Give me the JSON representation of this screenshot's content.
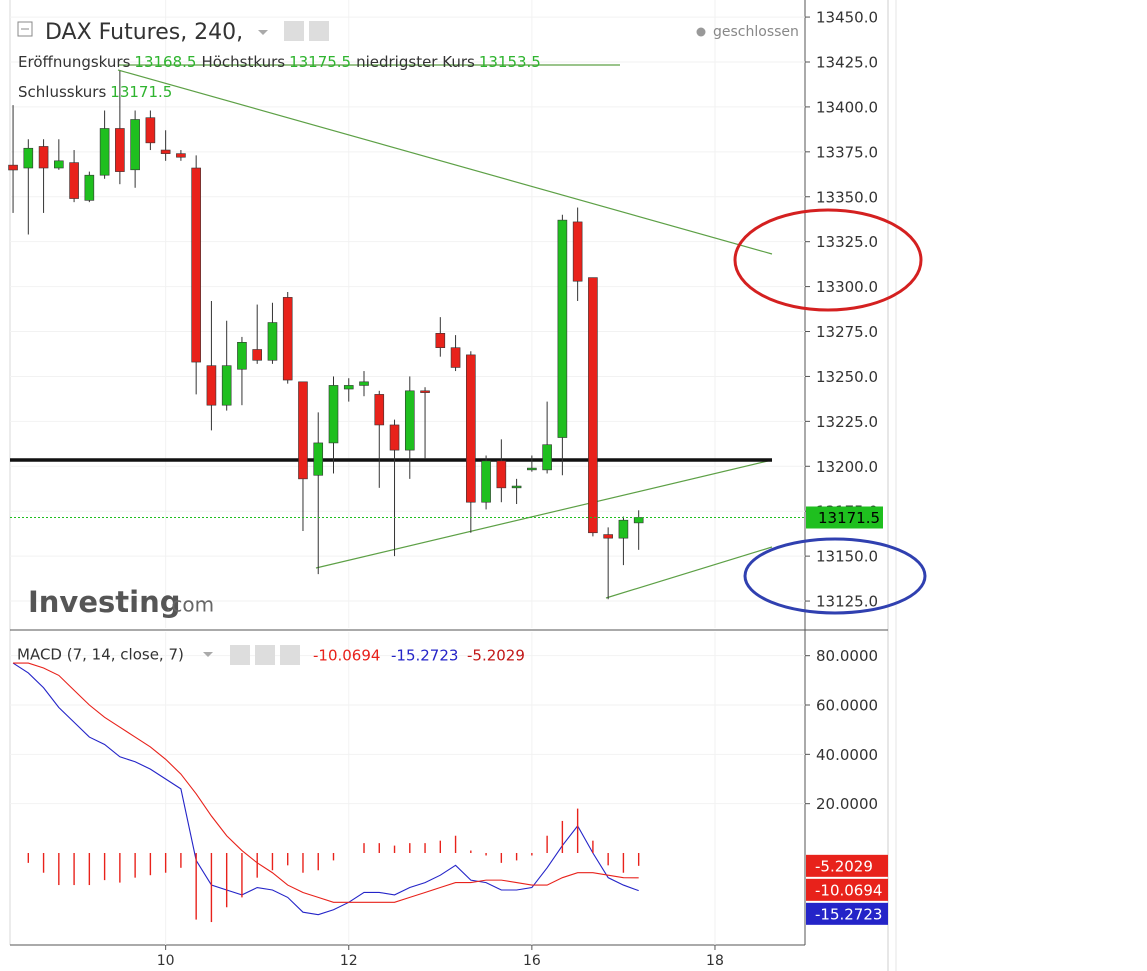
{
  "chart_data": [
    {
      "type": "candlestick",
      "title": "DAX Futures, 240,",
      "status": "geschlossen",
      "ohlc_labels": {
        "open": "Eröffnungskurs",
        "high": "Höchstkurs",
        "low": "niedrigster Kurs",
        "close": "Schlusskurs"
      },
      "watermark": "Investing",
      "watermark_suffix": ".com",
      "up_color": "#1fbf1f",
      "down_color": "#e8221b",
      "x": [
        0,
        1,
        2,
        3,
        4,
        5,
        6,
        7,
        8,
        9,
        10,
        11,
        12,
        13,
        14,
        15,
        16,
        17,
        18,
        19,
        20,
        21,
        22,
        23,
        24,
        25,
        26,
        27,
        28,
        29,
        30,
        31,
        32,
        33,
        34,
        35,
        36,
        37,
        38,
        39,
        40,
        41
      ],
      "open": [
        13367.6,
        13366,
        13378,
        13366,
        13369,
        13348,
        13362,
        13388,
        13365,
        13394,
        13376,
        13374,
        13366,
        13256,
        13234,
        13254,
        13265,
        13259,
        13294,
        13247,
        13195,
        13213,
        13243,
        13245,
        13240,
        13223,
        13209,
        13242,
        13274,
        13266,
        13262,
        13180,
        13203,
        13188,
        13198,
        13198,
        13216,
        13336,
        13305,
        13162,
        13160,
        13168.5
      ],
      "high": [
        13401,
        13382,
        13382,
        13382,
        13376,
        13364,
        13398,
        13420,
        13398,
        13398,
        13387,
        13376,
        13373,
        13292,
        13281,
        13272,
        13290,
        13291,
        13297,
        13247,
        13230,
        13250,
        13249,
        13253,
        13242,
        13226,
        13250,
        13244,
        13283,
        13273,
        13264,
        13206,
        13215,
        13193,
        13206,
        13236,
        13340,
        13344,
        13305,
        13166,
        13172,
        13175.5
      ],
      "low": [
        13341,
        13329,
        13341,
        13365,
        13347,
        13347,
        13360,
        13357,
        13355,
        13376,
        13370,
        13370,
        13240,
        13220,
        13231,
        13234,
        13257,
        13257,
        13246,
        13164,
        13140,
        13196,
        13236,
        13239,
        13188,
        13150,
        13193,
        13204,
        13261,
        13253,
        13163,
        13176,
        13180,
        13179,
        13197,
        13196,
        13195,
        13292,
        13161,
        13126,
        13145,
        13153.5
      ],
      "close": [
        13364.9,
        13377,
        13366,
        13370,
        13349,
        13362,
        13388,
        13364,
        13393,
        13380,
        13374,
        13372,
        13258,
        13234,
        13256,
        13269,
        13259,
        13280,
        13248,
        13193,
        13213,
        13245,
        13245,
        13247,
        13223,
        13209,
        13242,
        13241,
        13266,
        13255,
        13180,
        13203,
        13188,
        13189,
        13199,
        13212,
        13337,
        13303,
        13163,
        13160,
        13170,
        13171.5
      ],
      "xlim": [
        -0.2,
        51.9
      ],
      "xticks": [
        {
          "value": 10,
          "label": "10"
        },
        {
          "value": 22,
          "label": "12"
        },
        {
          "value": 34,
          "label": "16"
        },
        {
          "value": 46,
          "label": "18"
        }
      ],
      "ylim": [
        13110,
        13459.5
      ],
      "yticks": [
        {
          "value": 13450,
          "label": "13450.0"
        },
        {
          "value": 13425,
          "label": "13425.0"
        },
        {
          "value": 13400,
          "label": "13400.0"
        },
        {
          "value": 13375,
          "label": "13375.0"
        },
        {
          "value": 13350,
          "label": "13350.0"
        },
        {
          "value": 13325,
          "label": "13325.0"
        },
        {
          "value": 13300,
          "label": "13300.0"
        },
        {
          "value": 13275,
          "label": "13275.0"
        },
        {
          "value": 13250,
          "label": "13250.0"
        },
        {
          "value": 13225,
          "label": "13225.0"
        },
        {
          "value": 13200,
          "label": "13200.0"
        },
        {
          "value": 13175,
          "label": "13175.0"
        },
        {
          "value": 13150,
          "label": "13150.0"
        },
        {
          "value": 13125,
          "label": "13125.0"
        }
      ],
      "grid": true
    },
    {
      "type": "macd",
      "title": "MACD (7, 14, close, 7)",
      "series": [
        {
          "color": "#2424c8",
          "mark": "line",
          "values": [
            77,
            73,
            67,
            59,
            53,
            47,
            44,
            39,
            37,
            34,
            30,
            26,
            -3,
            -13,
            -15,
            -17,
            -14,
            -15,
            -18,
            -24,
            -25,
            -23,
            -20,
            -16,
            -16,
            -17,
            -14,
            -12,
            -9,
            -5,
            -11,
            -12,
            -15,
            -15,
            -14,
            -6,
            3,
            11,
            0,
            -10,
            -13,
            -15.2723
          ]
        },
        {
          "color": "#e8221b",
          "mark": "line",
          "values": [
            77,
            77,
            75,
            72,
            66,
            60,
            55,
            51,
            47,
            43,
            38,
            32,
            24,
            15,
            7,
            1,
            -4,
            -8,
            -13,
            -16,
            -18,
            -20,
            -20,
            -20,
            -20,
            -20,
            -18,
            -16,
            -14,
            -12,
            -12,
            -11,
            -11,
            -12,
            -13,
            -13,
            -10,
            -8,
            -8,
            -9,
            -10,
            -10.0694
          ]
        },
        {
          "color": "#e8221b",
          "mark": "bar",
          "values": [
            0,
            -4,
            -8,
            -13,
            -13,
            -13,
            -11,
            -12,
            -10,
            -9,
            -8,
            -6,
            -27,
            -28,
            -22,
            -18,
            -10,
            -7,
            -5,
            -8,
            -7,
            -3,
            0,
            4,
            4,
            3,
            4,
            4,
            5,
            7,
            1,
            -1,
            -4,
            -3,
            -1,
            7,
            13,
            18,
            5,
            -5,
            -8,
            -5.2029
          ]
        }
      ],
      "ylim": [
        -37.3,
        89.6
      ],
      "yticks": [
        {
          "value": 80,
          "label": "80.0000"
        },
        {
          "value": 60,
          "label": "60.0000"
        },
        {
          "value": 40,
          "label": "40.0000"
        },
        {
          "value": 20,
          "label": "20.0000"
        }
      ],
      "grid": true
    }
  ]
}
